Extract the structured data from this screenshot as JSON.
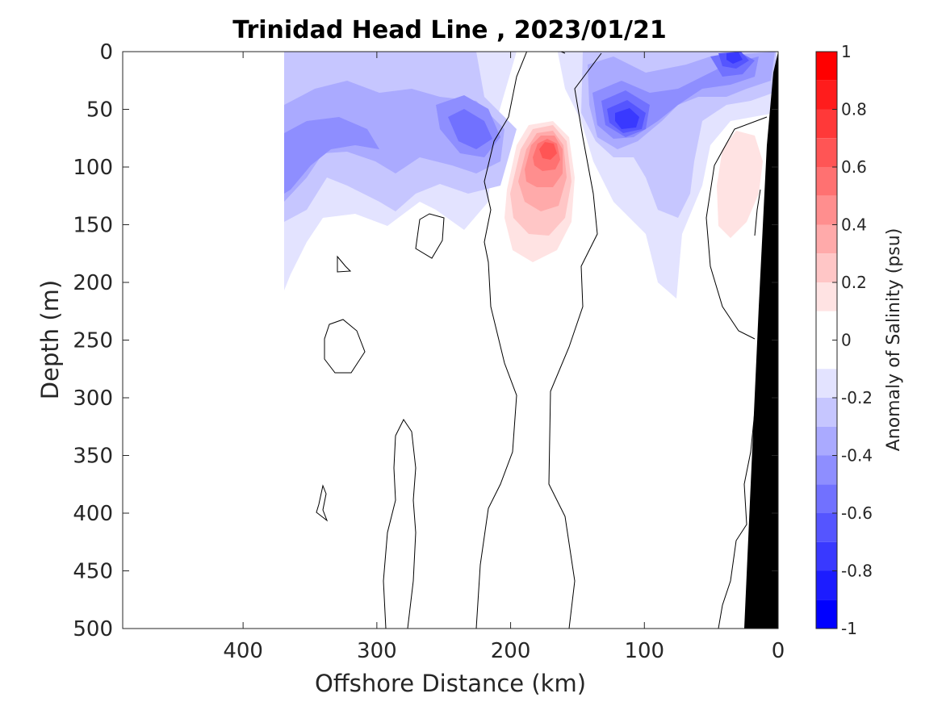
{
  "chart_data": {
    "type": "contour",
    "title": "Trinidad Head Line , 2023/01/21",
    "xlabel": "Offshore Distance (km)",
    "ylabel": "Depth (m)",
    "x_reversed": true,
    "y_reversed": true,
    "xlim": [
      0,
      490
    ],
    "ylim": [
      0,
      500
    ],
    "xticks": [
      400,
      300,
      200,
      100,
      0
    ],
    "yticks": [
      0,
      50,
      100,
      150,
      200,
      250,
      300,
      350,
      400,
      450,
      500
    ],
    "colorbar": {
      "label": "Anomaly of Salinity (psu)",
      "range": [
        -1,
        1
      ],
      "ticks": [
        "1",
        "0.8",
        "0.6",
        "0.4",
        "0.2",
        "0",
        "-0.2",
        "-0.4",
        "-0.6",
        "-0.8",
        "-1"
      ],
      "levels": [
        {
          "lo": 0.9,
          "hi": 1.0,
          "color": "#ff0000"
        },
        {
          "lo": 0.8,
          "hi": 0.9,
          "color": "#ff1c1c"
        },
        {
          "lo": 0.7,
          "hi": 0.8,
          "color": "#ff3939"
        },
        {
          "lo": 0.6,
          "hi": 0.7,
          "color": "#ff5555"
        },
        {
          "lo": 0.5,
          "hi": 0.6,
          "color": "#ff7171"
        },
        {
          "lo": 0.4,
          "hi": 0.5,
          "color": "#ff8e8e"
        },
        {
          "lo": 0.3,
          "hi": 0.4,
          "color": "#ffaaaa"
        },
        {
          "lo": 0.2,
          "hi": 0.3,
          "color": "#ffc6c6"
        },
        {
          "lo": 0.1,
          "hi": 0.2,
          "color": "#ffe3e3"
        },
        {
          "lo": 0.0,
          "hi": 0.1,
          "color": "#ffffff"
        },
        {
          "lo": -0.1,
          "hi": 0.0,
          "color": "#ffffff"
        },
        {
          "lo": -0.2,
          "hi": -0.1,
          "color": "#e3e3ff"
        },
        {
          "lo": -0.3,
          "hi": -0.2,
          "color": "#c6c6ff"
        },
        {
          "lo": -0.4,
          "hi": -0.3,
          "color": "#aaaaff"
        },
        {
          "lo": -0.5,
          "hi": -0.4,
          "color": "#8e8eff"
        },
        {
          "lo": -0.6,
          "hi": -0.5,
          "color": "#7171ff"
        },
        {
          "lo": -0.7,
          "hi": -0.6,
          "color": "#5555ff"
        },
        {
          "lo": -0.8,
          "hi": -0.7,
          "color": "#3939ff"
        },
        {
          "lo": -0.9,
          "hi": -0.8,
          "color": "#1c1c ff"
        },
        {
          "lo": -1.0,
          "hi": -0.9,
          "color": "#0000ff"
        }
      ]
    },
    "features": {
      "data_extent_offshore_km": 370,
      "seafloor_color": "#000000",
      "positive_core": {
        "center_km": 175,
        "center_depth_m": 90,
        "max_anomaly": 0.6,
        "depth_range_m": [
          60,
          180
        ]
      },
      "nearshore_positive": {
        "center_km": 30,
        "center_depth_m": 110,
        "max_anomaly": 0.2
      },
      "negative_cores": [
        {
          "center_km": 115,
          "center_depth_m": 60,
          "min_anomaly": -0.8
        },
        {
          "center_km": 35,
          "center_depth_m": 5,
          "min_anomaly": -0.8
        },
        {
          "center_km": 240,
          "center_depth_m": 75,
          "min_anomaly": -0.6
        },
        {
          "center_km": 365,
          "center_depth_m": 90,
          "min_anomaly": -0.5
        }
      ]
    }
  }
}
